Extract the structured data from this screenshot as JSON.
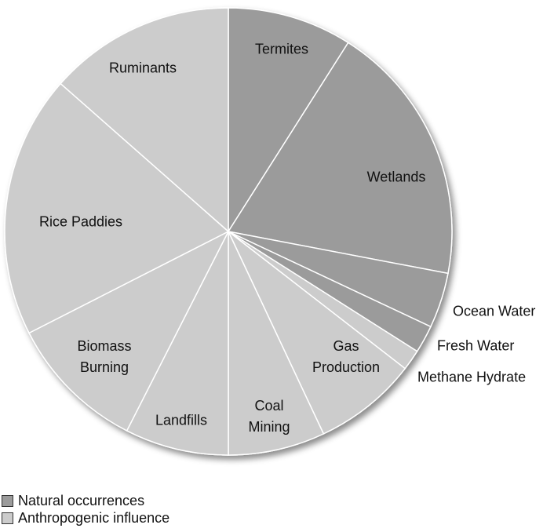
{
  "chart_data": {
    "type": "pie",
    "categories": [
      "Termites",
      "Wetlands",
      "Ocean Water",
      "Fresh Water",
      "Methane Hydrate",
      "Gas\nProduction",
      "Coal\nMining",
      "Landfills",
      "Biomass\nBurning",
      "Rice Paddies",
      "Ruminants"
    ],
    "values": [
      9,
      19,
      4,
      2,
      1.5,
      7.5,
      7,
      7.5,
      10,
      19,
      13.5
    ],
    "colors": [
      "#9b9b9b",
      "#9b9b9b",
      "#9b9b9b",
      "#9b9b9b",
      "#cccccc",
      "#cccccc",
      "#cccccc",
      "#cccccc",
      "#cccccc",
      "#cccccc",
      "#cccccc"
    ],
    "legend": [
      {
        "name": "Natural occurrences",
        "color": "#9b9b9b"
      },
      {
        "name": "Anthropogenic influence",
        "color": "#cccccc"
      }
    ]
  }
}
